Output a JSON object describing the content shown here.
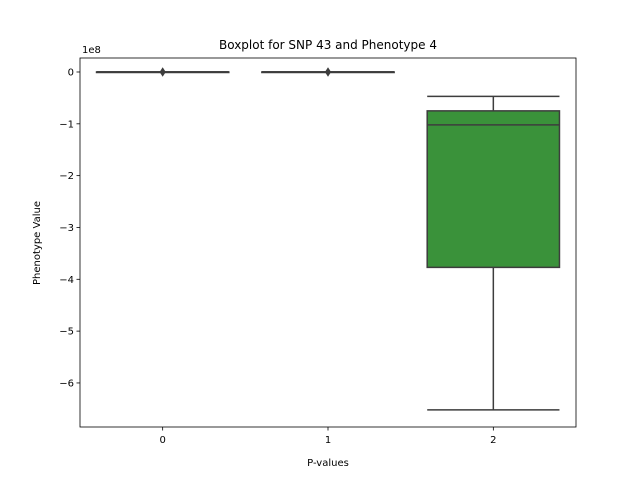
{
  "chart_data": {
    "type": "boxplot",
    "title": "Boxplot for SNP 43 and Phenotype 4",
    "xlabel": "P-values",
    "ylabel": "Phenotype Value",
    "y_offset_label": "1e8",
    "categories": [
      "0",
      "1",
      "2"
    ],
    "ylim": [
      -6.85,
      0.27
    ],
    "yticks": [
      0,
      -1,
      -2,
      -3,
      -4,
      -5,
      -6
    ],
    "ytick_labels": [
      "0",
      "−1",
      "−2",
      "−3",
      "−4",
      "−5",
      "−6"
    ],
    "boxes": [
      {
        "category": "0",
        "min": 0,
        "q1": 0,
        "median": 0,
        "q3": 0,
        "max": 0,
        "outliers": [
          0
        ],
        "color": "#3274a1"
      },
      {
        "category": "1",
        "min": 0,
        "q1": 0,
        "median": 0,
        "q3": 0,
        "max": 0,
        "outliers": [
          0
        ],
        "color": "#e1812c"
      },
      {
        "category": "2",
        "min": -6.52,
        "q1": -3.77,
        "median": -1.02,
        "q3": -0.75,
        "max": -0.47,
        "outliers": [],
        "color": "#3a923a"
      }
    ]
  }
}
